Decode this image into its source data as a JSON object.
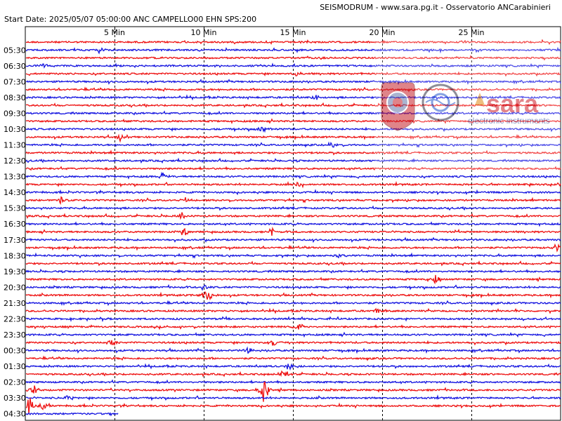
{
  "header": {
    "title": "SEISMODRUM - www.sara.pg.it - Osservatorio ANCarabinieri",
    "start_info": "Start Date: 2025/05/07 05:00:00 ANC CAMPELLO00 EHN  SPS:200"
  },
  "watermark": {
    "brand": "sara",
    "tagline": "electronic instruments"
  },
  "colors": {
    "trace_red": "#ee1111",
    "trace_blue": "#1515e0",
    "grid": "#000000",
    "background": "#ffffff"
  },
  "chart_data": {
    "type": "line",
    "title": "SEISMODRUM - www.sara.pg.it - Osservatorio ANCarabinieri",
    "subtitle": "Start Date: 2025/05/07 05:00:00 ANC CAMPELLO00 EHN  SPS:200",
    "xlabel": "",
    "ylabel": "",
    "x_unit": "Min",
    "xlim": [
      0,
      30
    ],
    "x_ticks": [
      {
        "value": 5,
        "label": "5 Min"
      },
      {
        "value": 10,
        "label": "10 Min"
      },
      {
        "value": 15,
        "label": "15 Min"
      },
      {
        "value": 20,
        "label": "20 Min"
      },
      {
        "value": 25,
        "label": "25 Min"
      }
    ],
    "grid": true,
    "row_count": 48,
    "row_colors_pattern": [
      "red",
      "blue",
      "red",
      "blue"
    ],
    "hour_labels": [
      "05:30",
      "06:30",
      "07:30",
      "08:30",
      "09:30",
      "10:30",
      "11:30",
      "12:30",
      "13:30",
      "14:30",
      "15:30",
      "16:30",
      "17:30",
      "18:30",
      "19:30",
      "20:30",
      "21:30",
      "22:30",
      "23:30",
      "00:30",
      "01:30",
      "02:30",
      "03:30",
      "04:30"
    ],
    "current_row_end_min": 5.2,
    "events": [
      {
        "row": 1,
        "min": 4.2,
        "amp": 0.5
      },
      {
        "row": 3,
        "min": 1.0,
        "amp": 0.4
      },
      {
        "row": 4,
        "min": 15.2,
        "amp": 0.4
      },
      {
        "row": 7,
        "min": 16.3,
        "amp": 0.5
      },
      {
        "row": 11,
        "min": 13.3,
        "amp": 0.5
      },
      {
        "row": 12,
        "min": 5.3,
        "amp": 0.5
      },
      {
        "row": 13,
        "min": 17.2,
        "amp": 0.5
      },
      {
        "row": 17,
        "min": 7.7,
        "amp": 0.6
      },
      {
        "row": 18,
        "min": 15.3,
        "amp": 0.5
      },
      {
        "row": 20,
        "min": 2.0,
        "amp": 0.5
      },
      {
        "row": 20,
        "min": 8.9,
        "amp": 0.5
      },
      {
        "row": 22,
        "min": 8.8,
        "amp": 0.5
      },
      {
        "row": 24,
        "min": 8.9,
        "amp": 0.6
      },
      {
        "row": 24,
        "min": 13.8,
        "amp": 0.6
      },
      {
        "row": 26,
        "min": 29.8,
        "amp": 0.6
      },
      {
        "row": 27,
        "min": 17.5,
        "amp": 0.5
      },
      {
        "row": 30,
        "min": 23.0,
        "amp": 0.6
      },
      {
        "row": 31,
        "min": 10.0,
        "amp": 0.5
      },
      {
        "row": 32,
        "min": 10.2,
        "amp": 1.3
      },
      {
        "row": 34,
        "min": 19.7,
        "amp": 0.5
      },
      {
        "row": 36,
        "min": 15.4,
        "amp": 0.6
      },
      {
        "row": 38,
        "min": 4.9,
        "amp": 0.5
      },
      {
        "row": 38,
        "min": 13.9,
        "amp": 0.5
      },
      {
        "row": 39,
        "min": 12.5,
        "amp": 0.4
      },
      {
        "row": 41,
        "min": 14.8,
        "amp": 0.7
      },
      {
        "row": 42,
        "min": 14.5,
        "amp": 0.8
      },
      {
        "row": 44,
        "min": 13.4,
        "amp": 2.2
      },
      {
        "row": 44,
        "min": 0.5,
        "amp": 0.8
      },
      {
        "row": 45,
        "min": 2.4,
        "amp": 0.5
      },
      {
        "row": 46,
        "min": 0.2,
        "amp": 1.5
      },
      {
        "row": 46,
        "min": 1.0,
        "amp": 0.6
      },
      {
        "row": 47,
        "min": 17.9,
        "amp": 0.7
      },
      {
        "row": 47,
        "min": 20.0,
        "amp": 0.4
      }
    ]
  }
}
